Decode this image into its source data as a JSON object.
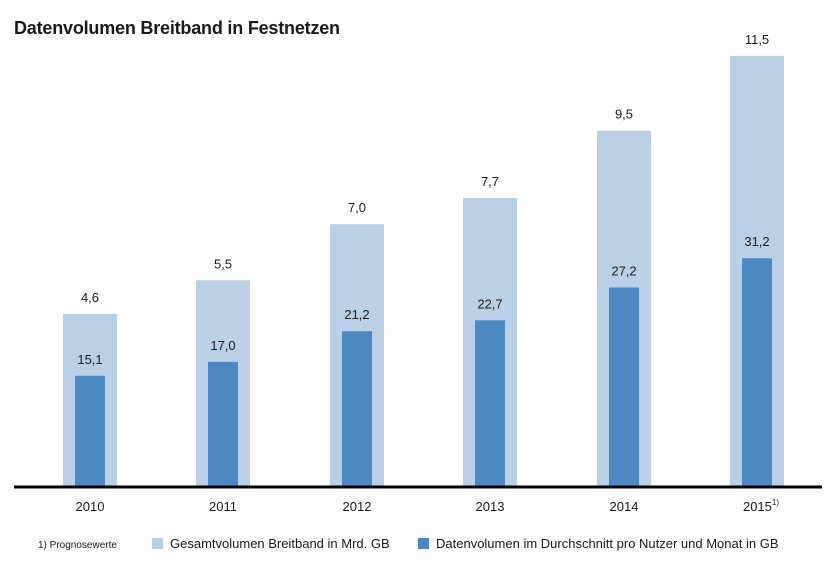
{
  "chart_data": {
    "type": "bar",
    "title": "Datenvolumen Breitband in Festnetzen",
    "categories": [
      "2010",
      "2011",
      "2012",
      "2013",
      "2014",
      "2015"
    ],
    "category_superscripts": [
      "",
      "",
      "",
      "",
      "",
      "1)"
    ],
    "series": [
      {
        "name": "Gesamtvolumen Breitband in Mrd. GB",
        "values": [
          4.6,
          5.5,
          7.0,
          7.7,
          9.5,
          11.5
        ],
        "labels": [
          "4,6",
          "5,5",
          "7,0",
          "7,7",
          "9,5",
          "11,5"
        ],
        "color": "#b9d0e6"
      },
      {
        "name": "Datenvolumen im Durchschnitt pro Nutzer und Monat in GB",
        "values": [
          15.1,
          17.0,
          21.2,
          22.7,
          27.2,
          31.2
        ],
        "labels": [
          "15,1",
          "17,0",
          "21,2",
          "22,7",
          "27,2",
          "31,2"
        ],
        "color": "#4d88c0"
      }
    ],
    "footnote": "1) Prognosewerte",
    "legend_position": "bottom",
    "grid": false
  }
}
